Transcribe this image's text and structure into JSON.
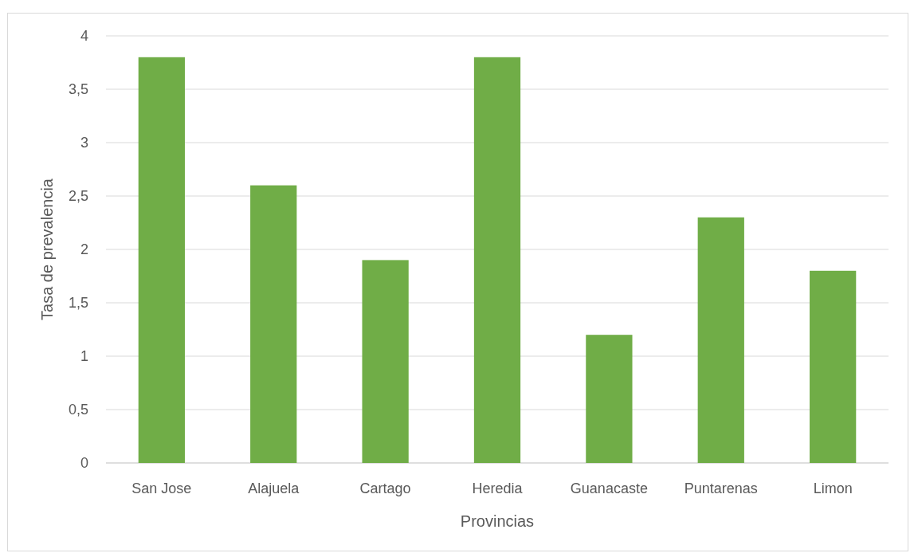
{
  "chart_data": {
    "type": "bar",
    "xlabel": "Provincias",
    "ylabel": "Tasa de prevalencia",
    "categories": [
      "San Jose",
      "Alajuela",
      "Cartago",
      "Heredia",
      "Guanacaste",
      "Puntarenas",
      "Limon"
    ],
    "values": [
      3.8,
      2.6,
      1.9,
      3.8,
      1.2,
      2.3,
      1.8
    ],
    "color": "#70ad47",
    "ylim": [
      0,
      4
    ],
    "yticks": [
      0,
      {
        "value": 0.5,
        "label": "0,5"
      },
      1,
      {
        "value": 1.5,
        "label": "1,5"
      },
      2,
      {
        "value": 2.5,
        "label": "2,5"
      },
      3,
      {
        "value": 3.5,
        "label": "3,5"
      },
      4
    ],
    "grid": "y"
  }
}
